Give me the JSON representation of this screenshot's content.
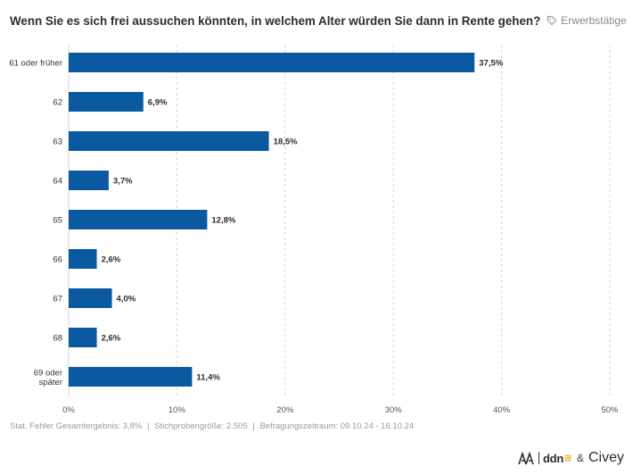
{
  "header": {
    "title": "Wenn Sie es sich frei aussuchen könnten, in welchem Alter würden Sie dann in Rente gehen?",
    "filter_label": "Erwerbstätige",
    "filter_icon": "tag-icon"
  },
  "chart_data": {
    "type": "bar",
    "orientation": "horizontal",
    "title": "Wenn Sie es sich frei aussuchen könnten, in welchem Alter würden Sie dann in Rente gehen?",
    "categories": [
      [
        "61 oder früher"
      ],
      [
        "62"
      ],
      [
        "63"
      ],
      [
        "64"
      ],
      [
        "65"
      ],
      [
        "66"
      ],
      [
        "67"
      ],
      [
        "68"
      ],
      [
        "69 oder",
        "später"
      ]
    ],
    "values": [
      37.5,
      6.9,
      18.5,
      3.7,
      12.8,
      2.6,
      4.0,
      2.6,
      11.4
    ],
    "value_labels": [
      "37,5%",
      "6,9%",
      "18,5%",
      "3,7%",
      "12,8%",
      "2,6%",
      "4,0%",
      "2,6%",
      "11,4%"
    ],
    "xlim": [
      0,
      50
    ],
    "xticks": [
      0,
      10,
      20,
      30,
      40,
      50
    ],
    "xtick_labels": [
      "0%",
      "10%",
      "20%",
      "30%",
      "40%",
      "50%"
    ],
    "grid": "vertical dashed",
    "bar_color": "#0b5aa1"
  },
  "footer": {
    "error": "Stat. Fehler Gesamtergebnis: 3,8%",
    "sample": "Stichprobengröße: 2.505",
    "period": "Befragungszeitraum: 09.10.24 - 16.10.24",
    "separator": "|"
  },
  "logos": {
    "ddn": "ddn",
    "amp": "&",
    "civey": "Civey"
  }
}
